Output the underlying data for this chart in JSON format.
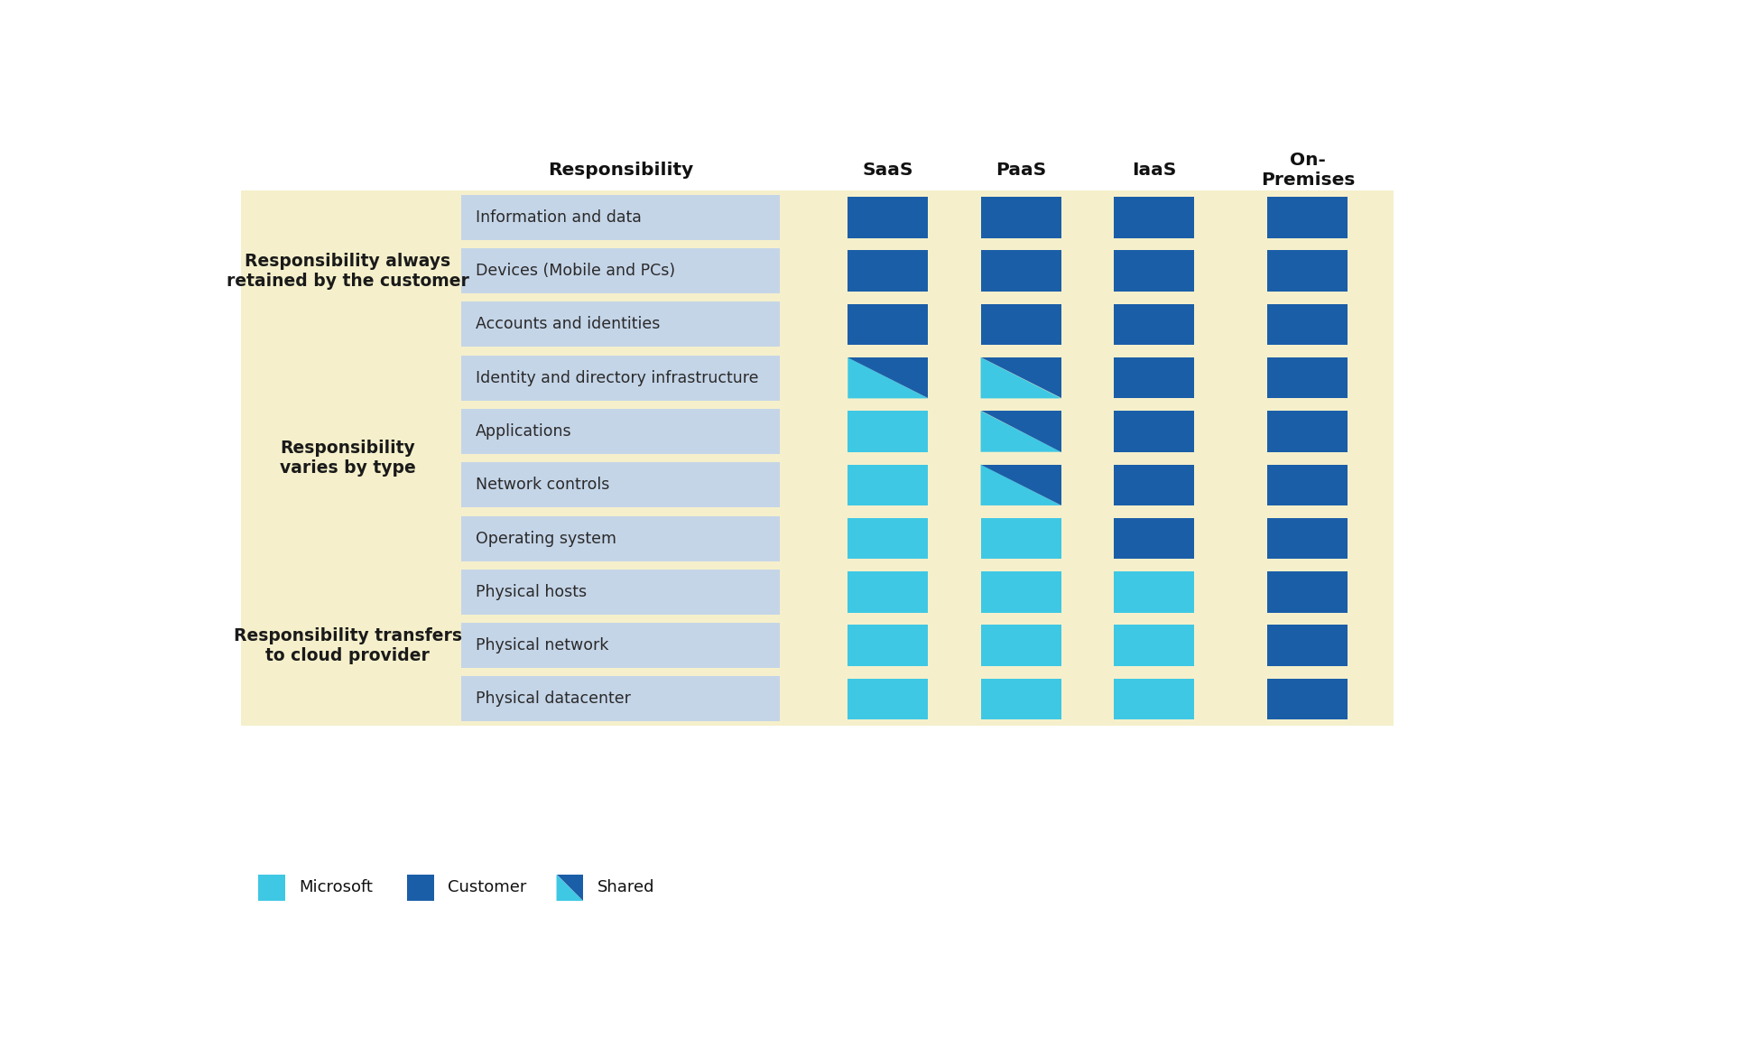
{
  "bg_color": "#ffffff",
  "yellow_bg": "#f5f0cb",
  "light_blue_cell": "#c5d5e8",
  "colors": {
    "microsoft": "#3fc8e4",
    "customer": "#1b5ea8",
    "shared_light": "#3fc8e4",
    "shared_dark": "#1b5ea8"
  },
  "col_headers": [
    "Responsibility",
    "SaaS",
    "PaaS",
    "IaaS",
    "On-\nPremises"
  ],
  "row_groups": [
    {
      "label": "Responsibility always\nretained by the customer",
      "rows": [
        "Information and data",
        "Devices (Mobile and PCs)",
        "Accounts and identities"
      ]
    },
    {
      "label": "Responsibility\nvaries by type",
      "rows": [
        "Identity and directory infrastructure",
        "Applications",
        "Network controls",
        "Operating system"
      ]
    },
    {
      "label": "Responsibility transfers\nto cloud provider",
      "rows": [
        "Physical hosts",
        "Physical network",
        "Physical datacenter"
      ]
    }
  ],
  "cell_types": {
    "Information and data": [
      "customer",
      "customer",
      "customer",
      "customer"
    ],
    "Devices (Mobile and PCs)": [
      "customer",
      "customer",
      "customer",
      "customer"
    ],
    "Accounts and identities": [
      "customer",
      "customer",
      "customer",
      "customer"
    ],
    "Identity and directory infrastructure": [
      "shared",
      "shared",
      "customer",
      "customer"
    ],
    "Applications": [
      "microsoft",
      "shared",
      "customer",
      "customer"
    ],
    "Network controls": [
      "microsoft",
      "shared",
      "customer",
      "customer"
    ],
    "Operating system": [
      "microsoft",
      "microsoft",
      "customer",
      "customer"
    ],
    "Physical hosts": [
      "microsoft",
      "microsoft",
      "microsoft",
      "customer"
    ],
    "Physical network": [
      "microsoft",
      "microsoft",
      "microsoft",
      "customer"
    ],
    "Physical datacenter": [
      "microsoft",
      "microsoft",
      "microsoft",
      "customer"
    ]
  }
}
